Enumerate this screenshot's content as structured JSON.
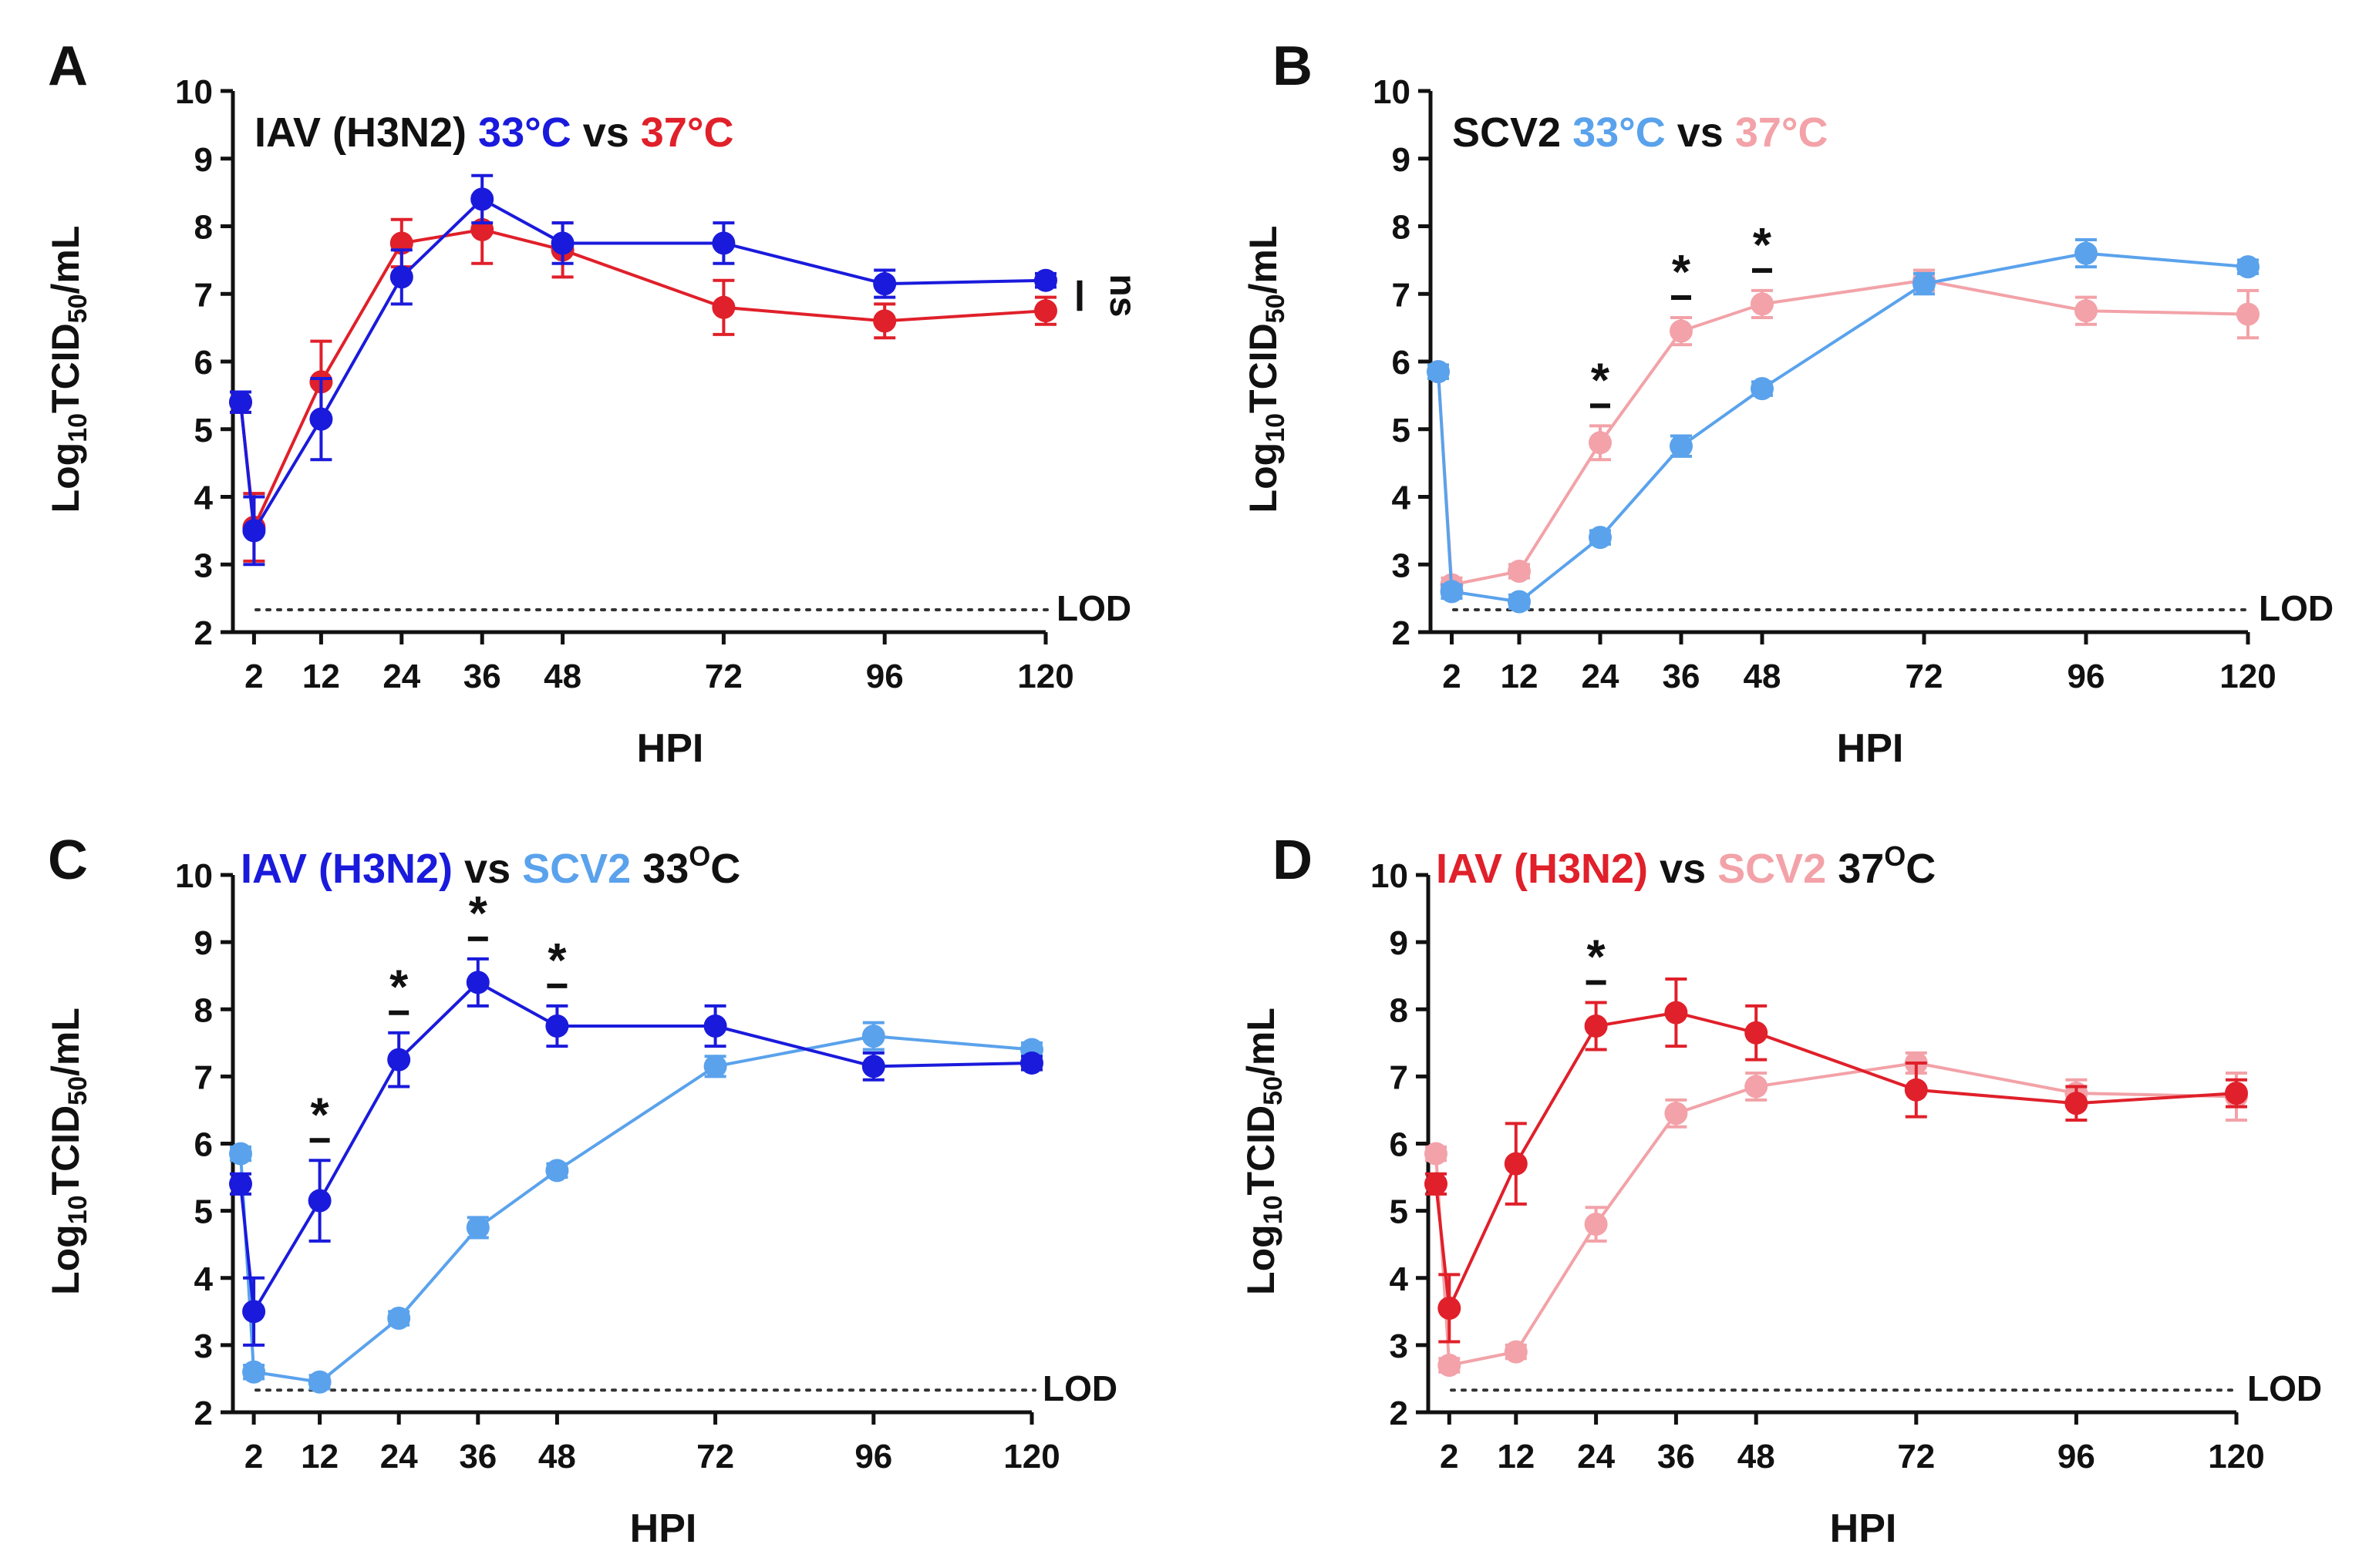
{
  "colors": {
    "iav33": "#1a1adc",
    "iav37": "#e0202a",
    "scv33": "#5aa2ec",
    "scv37": "#f2a2a8",
    "text": "#111111"
  },
  "chart_data": [
    {
      "panel": "A",
      "type": "line",
      "title": [
        {
          "text": "IAV (H3N2) ",
          "color": "text"
        },
        {
          "text": "33°C",
          "color": "iav33"
        },
        {
          "text": " vs ",
          "color": "text"
        },
        {
          "text": "37°C",
          "color": "iav37"
        }
      ],
      "xlabel": "HPI",
      "ylabel": "Log10TCID50/mL",
      "xlim": [
        0,
        120
      ],
      "ylim": [
        2,
        10
      ],
      "xticks": [
        2,
        12,
        24,
        36,
        48,
        72,
        96,
        120
      ],
      "yticks": [
        2,
        3,
        4,
        5,
        6,
        7,
        8,
        9,
        10
      ],
      "lod": {
        "value": 2.33,
        "label": "LOD"
      },
      "series": [
        {
          "name": "37°C",
          "color": "iav37",
          "x": [
            0,
            2,
            12,
            24,
            36,
            48,
            72,
            96,
            120
          ],
          "y": [
            5.4,
            3.55,
            5.7,
            7.75,
            7.95,
            7.65,
            6.8,
            6.6,
            6.75
          ],
          "err": [
            0.15,
            0.5,
            0.6,
            0.35,
            0.5,
            0.4,
            0.4,
            0.25,
            0.2
          ]
        },
        {
          "name": "33°C",
          "color": "iav33",
          "x": [
            0,
            2,
            12,
            24,
            36,
            48,
            72,
            96,
            120
          ],
          "y": [
            5.4,
            3.5,
            5.15,
            7.25,
            8.4,
            7.75,
            7.75,
            7.15,
            7.2
          ],
          "err": [
            0.15,
            0.5,
            0.6,
            0.4,
            0.35,
            0.3,
            0.3,
            0.2,
            0.1
          ]
        }
      ],
      "annotations": [
        {
          "type": "ns",
          "text": "ns"
        }
      ]
    },
    {
      "panel": "B",
      "type": "line",
      "title": [
        {
          "text": "SCV2 ",
          "color": "text"
        },
        {
          "text": "33°C",
          "color": "scv33"
        },
        {
          "text": " vs ",
          "color": "text"
        },
        {
          "text": "37°C",
          "color": "scv37"
        }
      ],
      "xlabel": "HPI",
      "ylabel": "Log10TCID50/mL",
      "xlim": [
        0,
        120
      ],
      "ylim": [
        2,
        10
      ],
      "xticks": [
        2,
        12,
        24,
        36,
        48,
        72,
        96,
        120
      ],
      "yticks": [
        2,
        3,
        4,
        5,
        6,
        7,
        8,
        9,
        10
      ],
      "lod": {
        "value": 2.33,
        "label": "LOD"
      },
      "series": [
        {
          "name": "37°C",
          "color": "scv37",
          "x": [
            0,
            2,
            12,
            24,
            36,
            48,
            72,
            96,
            120
          ],
          "y": [
            5.85,
            2.7,
            2.9,
            4.8,
            6.45,
            6.85,
            7.2,
            6.75,
            6.7
          ],
          "err": [
            0.1,
            0.1,
            0.1,
            0.25,
            0.2,
            0.2,
            0.15,
            0.2,
            0.35
          ]
        },
        {
          "name": "33°C",
          "color": "scv33",
          "x": [
            0,
            2,
            12,
            24,
            36,
            48,
            72,
            96,
            120
          ],
          "y": [
            5.85,
            2.6,
            2.45,
            3.4,
            4.75,
            5.6,
            7.15,
            7.6,
            7.4
          ],
          "err": [
            0.1,
            0.1,
            0.1,
            0.1,
            0.15,
            0.1,
            0.15,
            0.2,
            0.1
          ]
        }
      ],
      "annotations": [
        {
          "type": "star",
          "text": "*",
          "x": [
            24,
            36,
            48
          ]
        }
      ]
    },
    {
      "panel": "C",
      "type": "line",
      "title": [
        {
          "text": "IAV (H3N2)",
          "color": "iav33"
        },
        {
          "text": " vs ",
          "color": "text"
        },
        {
          "text": "SCV2",
          "color": "scv33"
        },
        {
          "text": " 33",
          "color": "text"
        },
        {
          "text": "O",
          "color": "text",
          "sup": true
        },
        {
          "text": "C",
          "color": "text"
        }
      ],
      "xlabel": "HPI",
      "ylabel": "Log10TCID50/mL",
      "xlim": [
        0,
        120
      ],
      "ylim": [
        2,
        10
      ],
      "xticks": [
        2,
        12,
        24,
        36,
        48,
        72,
        96,
        120
      ],
      "yticks": [
        2,
        3,
        4,
        5,
        6,
        7,
        8,
        9,
        10
      ],
      "lod": {
        "value": 2.33,
        "label": "LOD"
      },
      "series": [
        {
          "name": "SCV2",
          "color": "scv33",
          "x": [
            0,
            2,
            12,
            24,
            36,
            48,
            72,
            96,
            120
          ],
          "y": [
            5.85,
            2.6,
            2.45,
            3.4,
            4.75,
            5.6,
            7.15,
            7.6,
            7.4
          ],
          "err": [
            0.1,
            0.1,
            0.1,
            0.1,
            0.15,
            0.1,
            0.15,
            0.2,
            0.1
          ]
        },
        {
          "name": "IAV (H3N2)",
          "color": "iav33",
          "x": [
            0,
            2,
            12,
            24,
            36,
            48,
            72,
            96,
            120
          ],
          "y": [
            5.4,
            3.5,
            5.15,
            7.25,
            8.4,
            7.75,
            7.75,
            7.15,
            7.2
          ],
          "err": [
            0.15,
            0.5,
            0.6,
            0.4,
            0.35,
            0.3,
            0.3,
            0.2,
            0.1
          ]
        }
      ],
      "annotations": [
        {
          "type": "star",
          "text": "*",
          "x": [
            12,
            24,
            36,
            48
          ]
        }
      ]
    },
    {
      "panel": "D",
      "type": "line",
      "title": [
        {
          "text": "IAV (H3N2)",
          "color": "iav37"
        },
        {
          "text": " vs ",
          "color": "text"
        },
        {
          "text": "SCV2",
          "color": "scv37"
        },
        {
          "text": " 37",
          "color": "text"
        },
        {
          "text": "O",
          "color": "text",
          "sup": true
        },
        {
          "text": "C",
          "color": "text"
        }
      ],
      "xlabel": "HPI",
      "ylabel": "Log10TCID50/mL",
      "xlim": [
        0,
        120
      ],
      "ylim": [
        2,
        10
      ],
      "xticks": [
        2,
        12,
        24,
        36,
        48,
        72,
        96,
        120
      ],
      "yticks": [
        2,
        3,
        4,
        5,
        6,
        7,
        8,
        9,
        10
      ],
      "lod": {
        "value": 2.33,
        "label": "LOD"
      },
      "series": [
        {
          "name": "SCV2",
          "color": "scv37",
          "x": [
            0,
            2,
            12,
            24,
            36,
            48,
            72,
            96,
            120
          ],
          "y": [
            5.85,
            2.7,
            2.9,
            4.8,
            6.45,
            6.85,
            7.2,
            6.75,
            6.7
          ],
          "err": [
            0.1,
            0.1,
            0.1,
            0.25,
            0.2,
            0.2,
            0.15,
            0.2,
            0.35
          ]
        },
        {
          "name": "IAV (H3N2)",
          "color": "iav37",
          "x": [
            0,
            2,
            12,
            24,
            36,
            48,
            72,
            96,
            120
          ],
          "y": [
            5.4,
            3.55,
            5.7,
            7.75,
            7.95,
            7.65,
            6.8,
            6.6,
            6.75
          ],
          "err": [
            0.15,
            0.5,
            0.6,
            0.35,
            0.5,
            0.4,
            0.4,
            0.25,
            0.2
          ]
        }
      ],
      "annotations": [
        {
          "type": "star",
          "text": "*",
          "x": [
            24
          ]
        }
      ]
    }
  ]
}
